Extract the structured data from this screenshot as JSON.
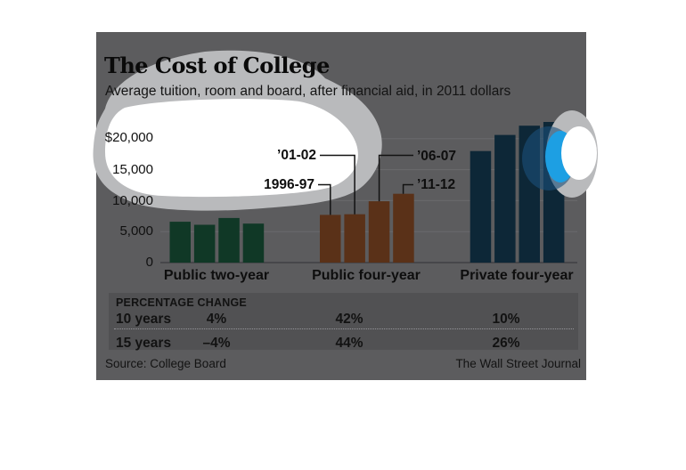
{
  "header": {
    "title": "The Cost of College",
    "subtitle": "Average tuition, room and board, after financial aid, in 2011 dollars"
  },
  "chart_data": {
    "type": "bar",
    "title": "The Cost of College",
    "subtitle": "Average tuition, room and board, after financial aid, in 2011 dollars",
    "categories": [
      "1996-97",
      "’01-02",
      "’06-07",
      "’11-12"
    ],
    "series": [
      {
        "name": "Public two-year",
        "color": "#103826",
        "values": [
          6600,
          6100,
          7200,
          6300
        ]
      },
      {
        "name": "Public four-year",
        "color": "#5a3118",
        "values": [
          7700,
          7800,
          9900,
          11100
        ]
      },
      {
        "name": "Private four-year",
        "color": "#0d2737",
        "values": [
          18000,
          20600,
          22100,
          22700
        ]
      }
    ],
    "ytick_labels": [
      "$20,000",
      "15,000",
      "10,000",
      "5,000",
      "0"
    ],
    "ytick_values": [
      20000,
      15000,
      10000,
      5000,
      0
    ],
    "ylim": [
      0,
      23000
    ],
    "grid": true,
    "unit": "2011 dollars"
  },
  "table": {
    "header": "PERCENTAGE CHANGE",
    "rows": [
      {
        "label": "10 years",
        "values": [
          "4%",
          "42%",
          "10%"
        ]
      },
      {
        "label": "15 years",
        "values": [
          "–4%",
          "44%",
          "26%"
        ]
      }
    ]
  },
  "footer": {
    "source": "Source: College Board",
    "credit": "The Wall Street Journal"
  },
  "colors": {
    "page": "#ffffff",
    "panel": "#5c5c5e",
    "band": "#515153",
    "gridline": "#6a6a6d",
    "baseline": "#3b3b3e",
    "connector": "#121212",
    "overlay_silver": "#b9babc",
    "overlay_white": "#ffffff",
    "overlay_blue": "#1d9fe3",
    "overlay_navy": "rgba(27,80,122,0.6)"
  }
}
